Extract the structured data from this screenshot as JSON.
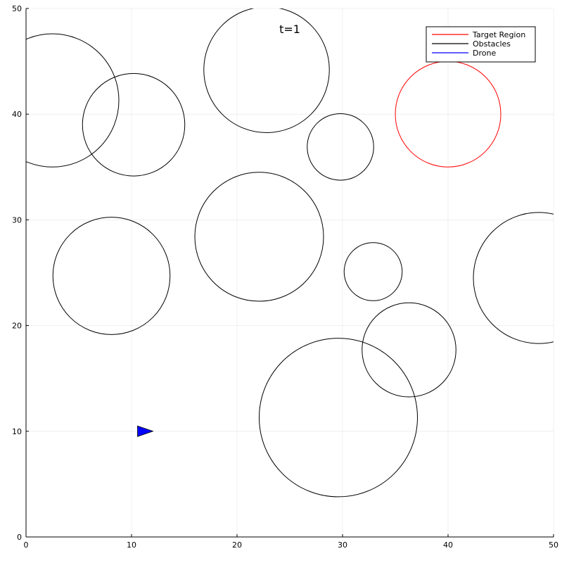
{
  "chart_data": {
    "type": "scatter",
    "title": "",
    "xlabel": "",
    "ylabel": "",
    "xlim": [
      0,
      50
    ],
    "ylim": [
      0,
      50
    ],
    "grid": true,
    "xticks": [
      "0",
      "10",
      "20",
      "30",
      "40",
      "50"
    ],
    "yticks": [
      "0",
      "10",
      "20",
      "30",
      "40",
      "50"
    ],
    "legend_position": "top-right",
    "legend": [
      {
        "label": "Target Region",
        "color": "#ff0000"
      },
      {
        "label": "Obstacles",
        "color": "#000000"
      },
      {
        "label": "Drone",
        "color": "#0000ff"
      }
    ],
    "annotation": {
      "text": "t=1",
      "x": 25,
      "y": 48
    },
    "target": {
      "x": 40,
      "y": 40,
      "r": 5,
      "color": "#ff0000"
    },
    "obstacles": [
      {
        "x": 2.5,
        "y": 41.3,
        "r": 6.3
      },
      {
        "x": 10.2,
        "y": 39.0,
        "r": 4.85
      },
      {
        "x": 22.8,
        "y": 44.2,
        "r": 5.95
      },
      {
        "x": 29.8,
        "y": 36.9,
        "r": 3.15
      },
      {
        "x": 22.1,
        "y": 28.4,
        "r": 6.1
      },
      {
        "x": 8.1,
        "y": 24.7,
        "r": 5.55
      },
      {
        "x": 32.9,
        "y": 25.1,
        "r": 2.75
      },
      {
        "x": 48.6,
        "y": 24.5,
        "r": 6.2
      },
      {
        "x": 36.3,
        "y": 17.7,
        "r": 4.45
      },
      {
        "x": 29.6,
        "y": 11.3,
        "r": 7.5
      }
    ],
    "drone": {
      "x": 11.3,
      "y": 10.0,
      "heading": "right",
      "color": "#0000ff"
    }
  }
}
